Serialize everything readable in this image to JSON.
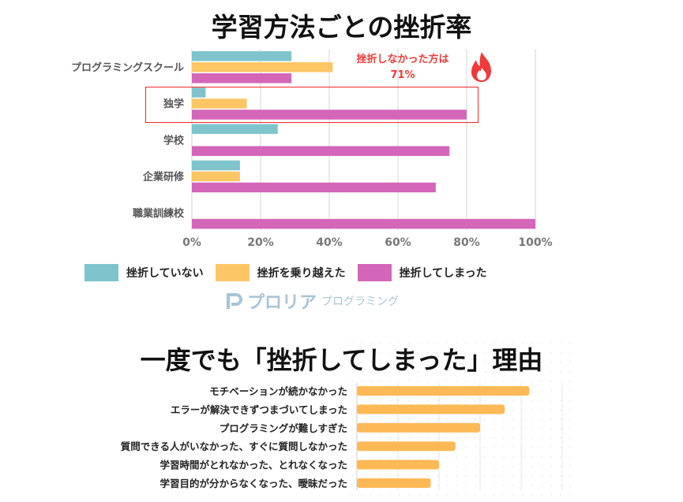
{
  "chart_data": [
    {
      "type": "bar",
      "orientation": "horizontal",
      "title": "学習方法ごとの挫折率",
      "categories": [
        "プログラミングスクール",
        "独学",
        "学校",
        "企業研修",
        "職業訓練校"
      ],
      "series": [
        {
          "name": "挫折していない",
          "color": "#7fc4cc",
          "values": [
            29,
            4,
            25,
            14,
            0
          ]
        },
        {
          "name": "挫折を乗り越えた",
          "color": "#fdc665",
          "values": [
            41,
            16,
            0,
            14,
            0
          ]
        },
        {
          "name": "挫折してしまった",
          "color": "#d466b9",
          "values": [
            29,
            80,
            75,
            71,
            100
          ]
        }
      ],
      "xlim": [
        0,
        100
      ],
      "xticks": [
        "0%",
        "20%",
        "40%",
        "60%",
        "80%",
        "100%"
      ],
      "grid": true,
      "legend": "bottom",
      "annotation": {
        "line1": "挫折しなかった方は",
        "line2": "71%",
        "color": "#ef3b3b",
        "icon": "fire-icon"
      },
      "highlight_category": "独学"
    },
    {
      "type": "bar",
      "orientation": "horizontal",
      "title": "一度でも「挫折してしまった」理由",
      "categories": [
        "モチベーションが続かなかった",
        "エラーが解決できずつまづいてしまった",
        "プログラミングが難しすぎた",
        "質問できる人がいなかった、すぐに質問しなかった",
        "学習時間がとれなかった、とれなくなった",
        "学習目的が分からなくなった、曖昧だった"
      ],
      "values": [
        4.2,
        3.6,
        3.0,
        2.4,
        2.0,
        1.8
      ],
      "xlim": [
        0,
        5
      ],
      "color": "#fdb955",
      "grid": true
    }
  ],
  "logo": {
    "name": "プロリア",
    "sub": "プログラミング"
  }
}
